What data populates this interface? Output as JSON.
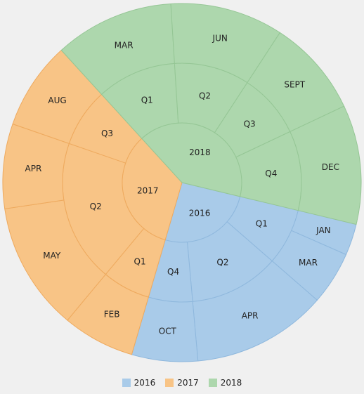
{
  "chart_data": {
    "type": "sunburst",
    "legend_position": "bottom",
    "series": [
      {
        "name": "2016",
        "color": "#a9cbe9",
        "children": [
          {
            "name": "Q1",
            "children": [
              {
                "name": "JAN",
                "value": 1
              },
              {
                "name": "MAR",
                "value": 1.7
              }
            ]
          },
          {
            "name": "Q2",
            "children": [
              {
                "name": "APR",
                "value": 4.3
              }
            ]
          },
          {
            "name": "Q4",
            "children": [
              {
                "name": "OCT",
                "value": 2.1
              }
            ]
          }
        ]
      },
      {
        "name": "2017",
        "color": "#f8c486",
        "children": [
          {
            "name": "Q1",
            "children": [
              {
                "name": "FEB",
                "value": 2.3
              }
            ]
          },
          {
            "name": "Q2",
            "children": [
              {
                "name": "MAY",
                "value": 4.1
              },
              {
                "name": "APR",
                "value": 2.7
              }
            ]
          },
          {
            "name": "Q3",
            "children": [
              {
                "name": "AUG",
                "value": 2.8
              }
            ]
          }
        ]
      },
      {
        "name": "2018",
        "color": "#add7ad",
        "children": [
          {
            "name": "Q1",
            "children": [
              {
                "name": "MAR",
                "value": 3.8
              }
            ]
          },
          {
            "name": "Q2",
            "children": [
              {
                "name": "JUN",
                "value": 3.6
              }
            ]
          },
          {
            "name": "Q3",
            "children": [
              {
                "name": "SEPT",
                "value": 3.1
              }
            ]
          },
          {
            "name": "Q4",
            "children": [
              {
                "name": "DEC",
                "value": 3.8
              }
            ]
          }
        ]
      }
    ]
  }
}
